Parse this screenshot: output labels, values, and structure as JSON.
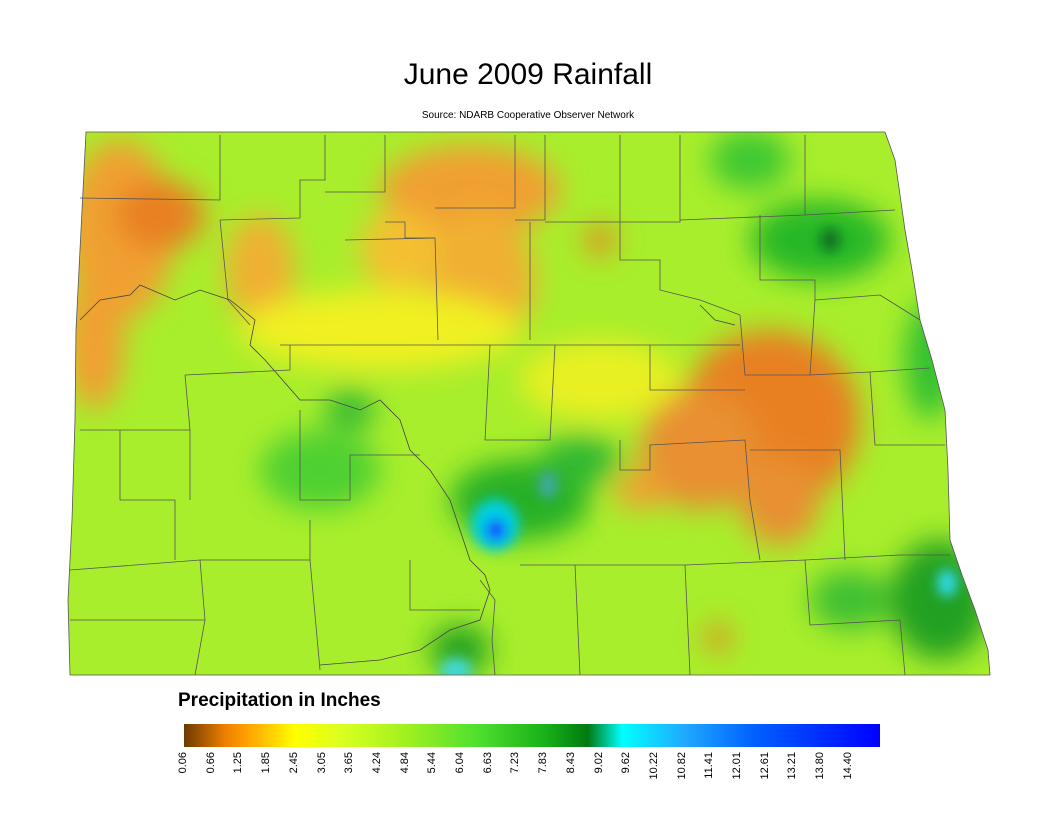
{
  "title": "June 2009 Rainfall",
  "subtitle": "Source: NDARB Cooperative Observer Network",
  "legend": {
    "title": "Precipitation in Inches",
    "ticks": [
      "0.06",
      "0.66",
      "1.25",
      "1.85",
      "2.45",
      "3.05",
      "3.65",
      "4.24",
      "4.84",
      "5.44",
      "6.04",
      "6.63",
      "7.23",
      "7.83",
      "8.43",
      "9.02",
      "9.62",
      "10.22",
      "10.82",
      "11.41",
      "12.01",
      "12.61",
      "13.21",
      "13.80",
      "14.40"
    ],
    "colors": [
      "#6b3a00",
      "#f08000",
      "#ffff00",
      "#a0f020",
      "#18b018",
      "#007a10",
      "#00ffff",
      "#0060ff",
      "#0000ff"
    ]
  }
}
